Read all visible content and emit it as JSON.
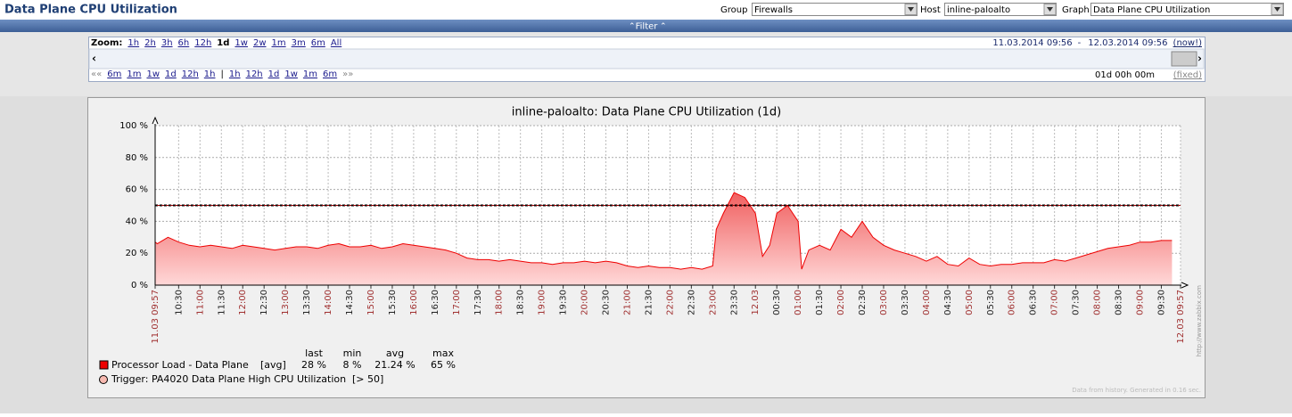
{
  "header": {
    "title": "Data Plane CPU Utilization"
  },
  "filters": [
    {
      "label": "Group",
      "value": "Firewalls"
    },
    {
      "label": "Host",
      "value": "inline-paloalto"
    },
    {
      "label": "Graph",
      "value": "Data Plane CPU Utilization"
    }
  ],
  "filter_bar": "Filter",
  "zoom": {
    "label": "Zoom:",
    "options": [
      "1h",
      "2h",
      "3h",
      "6h",
      "12h",
      "1d",
      "1w",
      "2w",
      "1m",
      "3m",
      "6m",
      "All"
    ],
    "active": "1d",
    "from": "11.03.2014 09:56",
    "separator": "-",
    "to": "12.03.2014 09:56",
    "now": "(now!)",
    "nav": [
      "««",
      "6m",
      "1m",
      "1w",
      "1d",
      "12h",
      "1h",
      "|",
      "1h",
      "12h",
      "1d",
      "1w",
      "1m",
      "6m",
      "»»"
    ],
    "period": "01d 00h 00m",
    "fixed": "(fixed)"
  },
  "chart_data": {
    "type": "line",
    "title": "inline-paloalto: Data Plane CPU Utilization (1d)",
    "x": [
      "09:57",
      "10:00",
      "10:15",
      "10:30",
      "10:45",
      "11:00",
      "11:15",
      "11:30",
      "11:45",
      "12:00",
      "12:15",
      "12:30",
      "12:45",
      "13:00",
      "13:15",
      "13:30",
      "13:45",
      "14:00",
      "14:15",
      "14:30",
      "14:45",
      "15:00",
      "15:15",
      "15:30",
      "15:45",
      "16:00",
      "16:15",
      "16:30",
      "16:45",
      "17:00",
      "17:15",
      "17:30",
      "17:45",
      "18:00",
      "18:15",
      "18:30",
      "18:45",
      "19:00",
      "19:15",
      "19:30",
      "19:45",
      "20:00",
      "20:15",
      "20:30",
      "20:45",
      "21:00",
      "21:15",
      "21:30",
      "21:45",
      "22:00",
      "22:15",
      "22:30",
      "22:45",
      "23:00",
      "23:05",
      "23:15",
      "23:30",
      "23:45",
      "00:00",
      "00:10",
      "00:20",
      "00:30",
      "00:45",
      "01:00",
      "01:05",
      "01:15",
      "01:30",
      "01:45",
      "02:00",
      "02:15",
      "02:30",
      "02:45",
      "03:00",
      "03:15",
      "03:30",
      "03:45",
      "04:00",
      "04:15",
      "04:30",
      "04:45",
      "05:00",
      "05:15",
      "05:30",
      "05:45",
      "06:00",
      "06:15",
      "06:30",
      "06:45",
      "07:00",
      "07:15",
      "07:30",
      "07:45",
      "08:00",
      "08:15",
      "08:30",
      "08:45",
      "09:00",
      "09:15",
      "09:30",
      "09:45"
    ],
    "series": [
      {
        "name": "Processor Load - Data Plane",
        "color": "#ee0000",
        "function": "[avg]",
        "values": [
          27,
          26,
          30,
          27,
          25,
          24,
          25,
          24,
          23,
          25,
          24,
          23,
          22,
          23,
          24,
          24,
          23,
          25,
          26,
          24,
          24,
          25,
          23,
          24,
          26,
          25,
          24,
          23,
          22,
          20,
          17,
          16,
          16,
          15,
          16,
          15,
          14,
          14,
          13,
          14,
          14,
          15,
          14,
          15,
          14,
          12,
          11,
          12,
          11,
          11,
          10,
          11,
          10,
          12,
          35,
          45,
          58,
          55,
          45,
          18,
          25,
          45,
          50,
          40,
          10,
          22,
          25,
          22,
          35,
          30,
          40,
          30,
          25,
          22,
          20,
          18,
          15,
          18,
          13,
          12,
          17,
          13,
          12,
          13,
          13,
          14,
          14,
          14,
          16,
          15,
          17,
          19,
          21,
          23,
          24,
          25,
          27,
          27,
          28,
          28
        ]
      }
    ],
    "xlim": [
      "09:57",
      "09:57"
    ],
    "xticks": [
      {
        "value": "09:57",
        "label": "11.03 09:57"
      },
      "10:30",
      "11:00",
      "11:30",
      "12:00",
      "12:30",
      "13:00",
      "13:30",
      "14:00",
      "14:30",
      "15:00",
      "15:30",
      "16:00",
      "16:30",
      "17:00",
      "17:30",
      "18:00",
      "18:30",
      "19:00",
      "19:30",
      "20:00",
      "20:30",
      "21:00",
      "21:30",
      "22:00",
      "22:30",
      "23:00",
      "23:30",
      {
        "value": "00:00",
        "label": "12.03"
      },
      "00:30",
      "01:00",
      "01:30",
      "02:00",
      "02:30",
      "03:00",
      "03:30",
      "04:00",
      "04:30",
      "05:00",
      "05:30",
      "06:00",
      "06:30",
      "07:00",
      "07:30",
      "08:00",
      "08:30",
      "09:00",
      "09:30",
      {
        "value": "09:57",
        "label": "12.03 09:57"
      }
    ],
    "ylim": [
      0,
      100
    ],
    "yticks": [
      {
        "value": 0,
        "label": "0 %"
      },
      {
        "value": 20,
        "label": "20 %"
      },
      {
        "value": 40,
        "label": "40 %"
      },
      {
        "value": 60,
        "label": "60 %"
      },
      {
        "value": 80,
        "label": "80 %"
      },
      {
        "value": 100,
        "label": "100 %"
      }
    ],
    "grid": true,
    "trigger": {
      "name": "Trigger: PA4020 Data Plane High CPU Utilization",
      "label": "[> 50]",
      "threshold": 50,
      "color": "#990000"
    },
    "legend_stats": {
      "headers": [
        "last",
        "min",
        "avg",
        "max"
      ],
      "values": [
        28,
        8,
        21.24,
        65
      ],
      "value_labels": [
        "28 %",
        "8 %",
        "21.24 %",
        "65 %"
      ]
    },
    "footer": "Data from history. Generated in 0.16 sec.",
    "watermark": "http://www.zabbix.com"
  }
}
